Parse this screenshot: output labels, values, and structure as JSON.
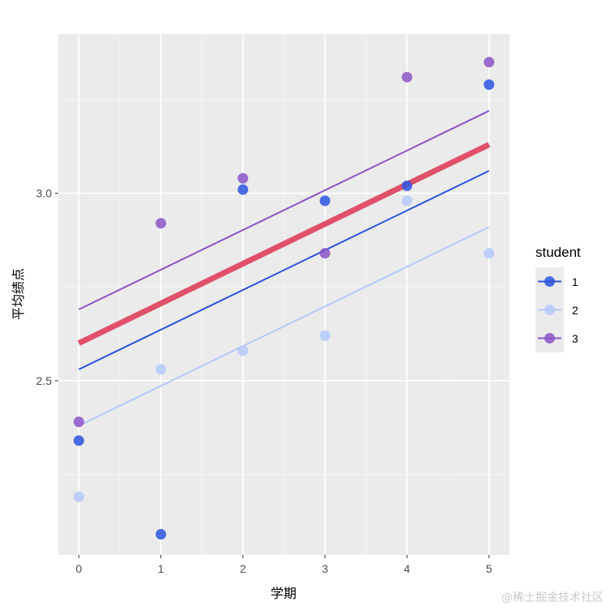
{
  "chart_data": {
    "type": "scatter",
    "title": "",
    "xlabel": "学期",
    "ylabel": "平均绩点",
    "xlim": [
      -0.25,
      5.25
    ],
    "ylim": [
      2.035,
      3.425
    ],
    "x_ticks": [
      0,
      1,
      2,
      3,
      4,
      5
    ],
    "y_ticks": [
      2.5,
      3.0
    ],
    "y_tick_labels": [
      "2.5",
      "3.0"
    ],
    "grid": true,
    "legend": {
      "title": "student",
      "position": "right"
    },
    "series": [
      {
        "name": "1",
        "color": "#2b53e0",
        "points": [
          [
            0,
            2.34
          ],
          [
            1,
            2.09
          ],
          [
            2,
            3.01
          ],
          [
            3,
            2.98
          ],
          [
            4,
            3.02
          ],
          [
            5,
            3.29
          ]
        ],
        "fit_line": [
          [
            0,
            2.53
          ],
          [
            5,
            3.06
          ]
        ]
      },
      {
        "name": "2",
        "color": "#b4c8fa",
        "points": [
          [
            0,
            2.19
          ],
          [
            1,
            2.53
          ],
          [
            2,
            2.58
          ],
          [
            3,
            2.62
          ],
          [
            4,
            2.98
          ],
          [
            5,
            2.84
          ]
        ],
        "fit_line": [
          [
            0,
            2.38
          ],
          [
            5,
            2.91
          ]
        ]
      },
      {
        "name": "3",
        "color": "#8b55c8",
        "points": [
          [
            0,
            2.39
          ],
          [
            1,
            2.92
          ],
          [
            2,
            3.04
          ],
          [
            3,
            2.84
          ],
          [
            4,
            3.31
          ],
          [
            5,
            3.35
          ]
        ],
        "fit_line": [
          [
            0,
            2.69
          ],
          [
            5,
            3.22
          ]
        ]
      }
    ],
    "overall_fit": {
      "color": "#e0506a",
      "line": [
        [
          0,
          2.6
        ],
        [
          5,
          3.13
        ]
      ]
    }
  },
  "watermark": "@稀土掘金技术社区"
}
